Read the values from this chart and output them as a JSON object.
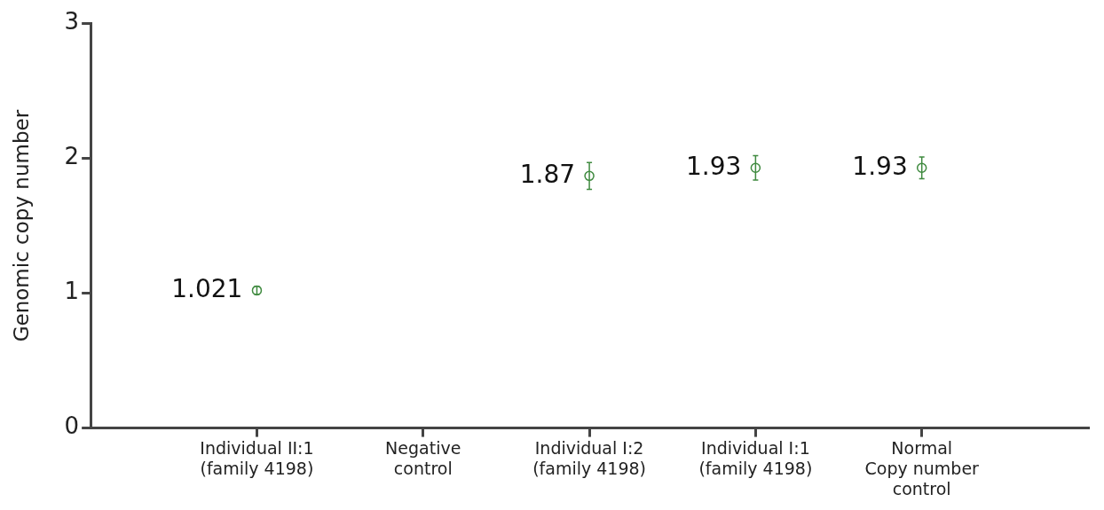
{
  "chart_data": {
    "type": "scatter",
    "ylabel": "Genomic copy number",
    "categories": [
      "Individual II:1\n(family 4198)",
      "Negative\ncontrol",
      "Individual I:2\n(family 4198)",
      "Individual I:1\n(family 4198)",
      "Normal\nCopy number\ncontrol"
    ],
    "series": [
      {
        "color": "#3f8a3f",
        "values": [
          1.021,
          null,
          1.87,
          1.93,
          1.93
        ],
        "errors": [
          0.03,
          null,
          0.1,
          0.09,
          0.08
        ]
      }
    ],
    "ylim": [
      0,
      3
    ],
    "yticks": [
      0,
      1,
      2,
      3
    ],
    "grid": false,
    "legend": false,
    "marker": "circle",
    "data_labels": true
  }
}
